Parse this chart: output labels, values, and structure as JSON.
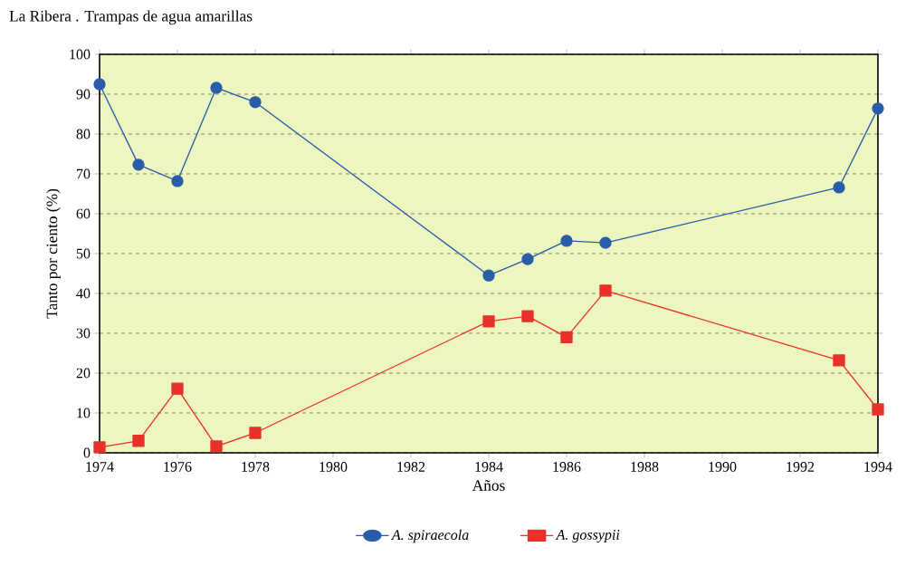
{
  "chart_data": {
    "type": "line",
    "title": "La Ribera . Trampas de agua amarillas",
    "xlabel": "Años",
    "ylabel": "Tanto por ciento (%)",
    "x": [
      1974,
      1975,
      1976,
      1977,
      1978,
      1984,
      1985,
      1986,
      1987,
      1993,
      1994
    ],
    "series": [
      {
        "name": "A. spiraecola",
        "color": "#2a5caa",
        "marker": "circle",
        "values": [
          92.5,
          72.3,
          68.2,
          91.6,
          88,
          44.5,
          48.6,
          53.2,
          52.7,
          66.6,
          86.4
        ]
      },
      {
        "name": "A. gossypii",
        "color": "#e8312a",
        "marker": "square",
        "values": [
          1.4,
          3,
          16.1,
          1.6,
          5,
          33,
          34.3,
          29,
          40.7,
          23.2,
          10.9
        ]
      }
    ],
    "xlim": [
      1974,
      1994
    ],
    "xticks": [
      1974,
      1976,
      1978,
      1980,
      1982,
      1984,
      1986,
      1988,
      1990,
      1992,
      1994
    ],
    "ylim": [
      0,
      100
    ],
    "yticks": [
      0,
      10,
      20,
      30,
      40,
      50,
      60,
      70,
      80,
      90,
      100
    ],
    "grid": "y",
    "legend": "bottom",
    "line_style": "solid"
  }
}
